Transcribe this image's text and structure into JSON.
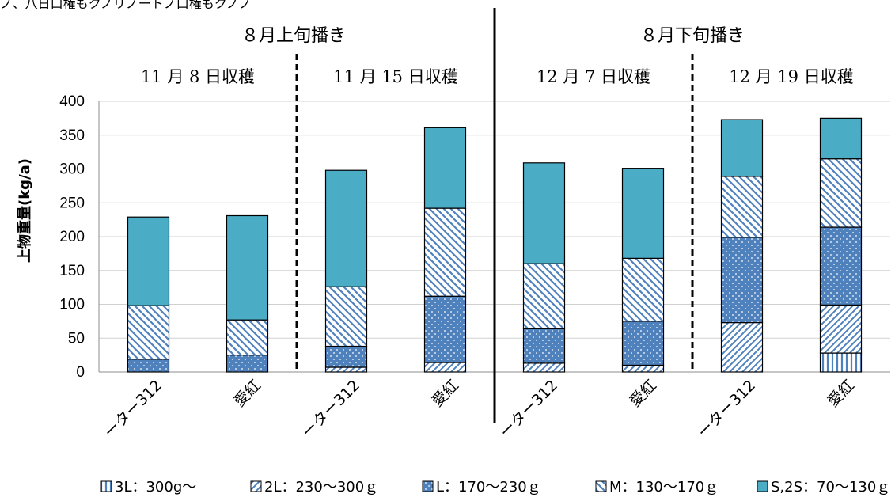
{
  "header_text": "ノ、八日口権もクノリノートノ口権もクノノ",
  "colors": {
    "S,2S": "#4BACC6",
    "L": "#4F81BD",
    "hatch": "#4F81BD",
    "edge": "#000000"
  },
  "chart_data": {
    "type": "bar",
    "stacked": true,
    "ylabel": "上物重量(kg/a)",
    "ylim": [
      0,
      400
    ],
    "yticks": [
      0,
      50,
      100,
      150,
      200,
      250,
      300,
      350,
      400
    ],
    "grid": true,
    "legend_position": "bottom",
    "groups": [
      {
        "period": "８月上旬播き",
        "harvests": [
          "11 月 8 日収穫",
          "11 月 15 日収穫"
        ]
      },
      {
        "period": "８月下旬播き",
        "harvests": [
          "12 月 7 日収穫",
          "12 月 19 日収穫"
        ]
      }
    ],
    "categories": [
      "ーター312",
      "愛紅",
      "ーター312",
      "愛紅",
      "ーター312",
      "愛紅",
      "ーター312",
      "愛紅"
    ],
    "series": [
      {
        "name": "3L：300g〜",
        "values": [
          0,
          0,
          0,
          0,
          0,
          0,
          0,
          28
        ]
      },
      {
        "name": "2L：230〜300ｇ",
        "values": [
          0,
          0,
          7,
          14,
          13,
          10,
          73,
          71
        ]
      },
      {
        "name": "L：170〜230ｇ",
        "values": [
          19,
          25,
          31,
          98,
          51,
          65,
          126,
          115
        ]
      },
      {
        "name": "M：130〜170ｇ",
        "values": [
          79,
          52,
          88,
          130,
          96,
          93,
          90,
          101
        ]
      },
      {
        "name": "S,2S：70〜130ｇ",
        "values": [
          131,
          154,
          172,
          119,
          149,
          133,
          84,
          60
        ]
      }
    ]
  }
}
